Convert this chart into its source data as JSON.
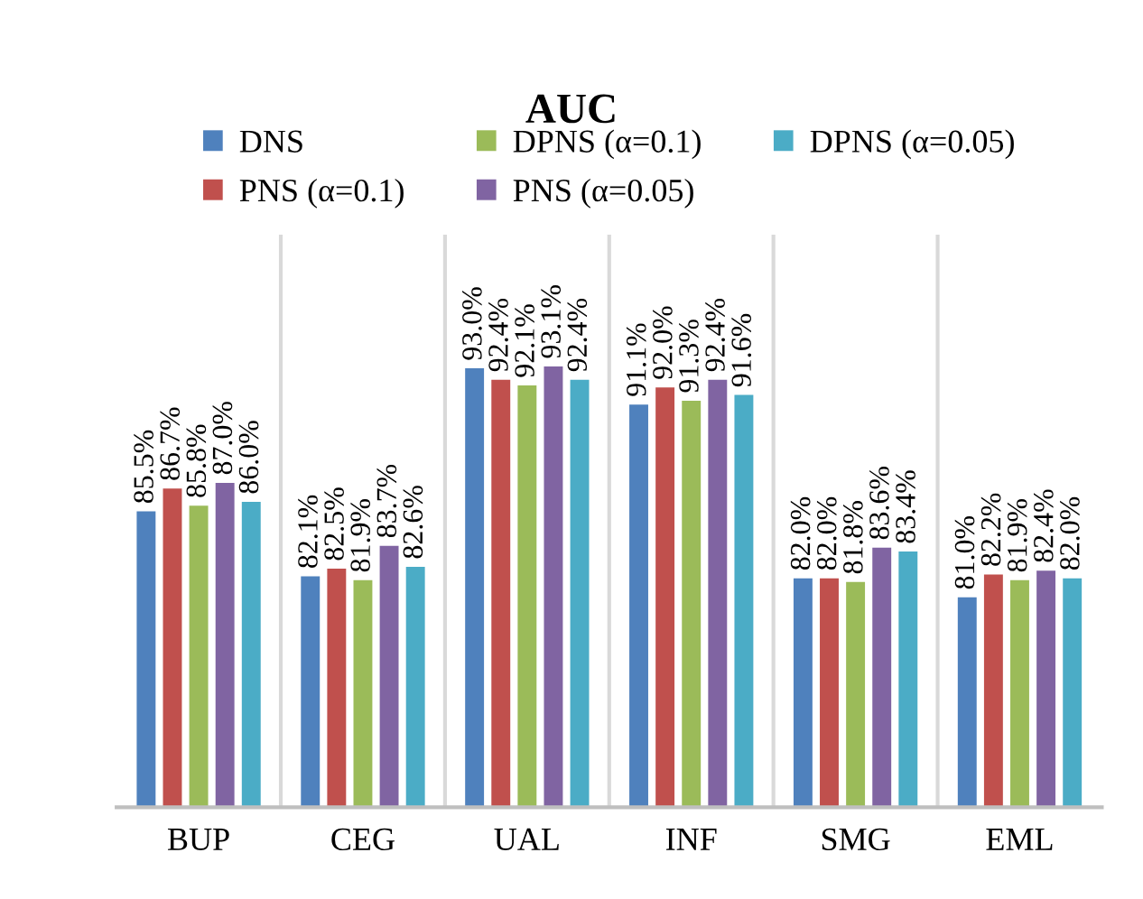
{
  "chart_data": {
    "type": "bar",
    "title": "AUC",
    "categories": [
      "BUP",
      "CEG",
      "UAL",
      "INF",
      "SMG",
      "EML"
    ],
    "series": [
      {
        "name": "DNS",
        "color": "#4f81bd",
        "values": [
          85.5,
          82.1,
          93.0,
          91.1,
          82.0,
          81.0
        ],
        "value_labels": [
          "85.5%",
          "82.1%",
          "93.0%",
          "91.1%",
          "82.0%",
          "81.0%"
        ]
      },
      {
        "name": "PNS (α=0.1)",
        "color": "#c0504d",
        "values": [
          86.7,
          82.5,
          92.4,
          92.0,
          82.0,
          82.2
        ],
        "value_labels": [
          "86.7%",
          "82.5%",
          "92.4%",
          "92.0%",
          "82.0%",
          "82.2%"
        ]
      },
      {
        "name": "DPNS (α=0.1)",
        "color": "#9bbb59",
        "values": [
          85.8,
          81.9,
          92.1,
          91.3,
          81.8,
          81.9
        ],
        "value_labels": [
          "85.8%",
          "81.9%",
          "92.1%",
          "91.3%",
          "81.8%",
          "81.9%"
        ]
      },
      {
        "name": "PNS (α=0.05)",
        "color": "#8064a2",
        "values": [
          87.0,
          83.7,
          93.1,
          92.4,
          83.6,
          82.4
        ],
        "value_labels": [
          "87.0%",
          "83.7%",
          "93.1%",
          "92.4%",
          "83.6%",
          "82.4%"
        ]
      },
      {
        "name": "DPNS (α=0.05)",
        "color": "#4bacc6",
        "values": [
          86.0,
          82.6,
          92.4,
          91.6,
          83.4,
          82.0
        ],
        "value_labels": [
          "86.0%",
          "82.6%",
          "92.4%",
          "91.6%",
          "83.4%",
          "82.0%"
        ]
      }
    ],
    "ylim": [
      70,
      100
    ],
    "tick_labels": "x",
    "grid": "x",
    "legend": "top"
  }
}
